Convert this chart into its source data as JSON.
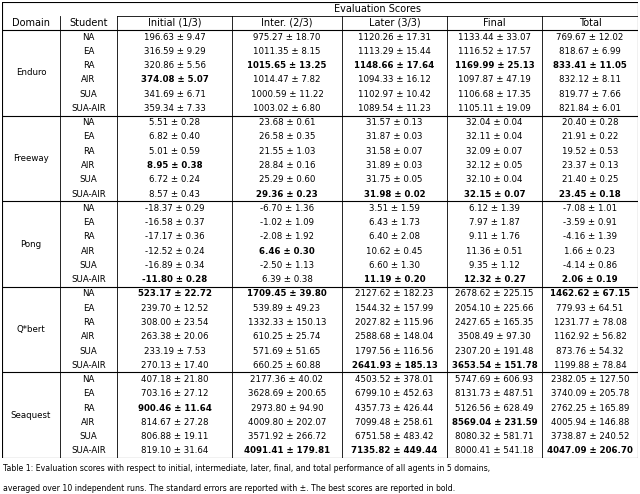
{
  "title": "Evaluation Scores",
  "col_headers": [
    "Domain",
    "Student",
    "Initial (1/3)",
    "Inter. (2/3)",
    "Later (3/3)",
    "Final",
    "Total"
  ],
  "domains": [
    "Enduro",
    "Freeway",
    "Pong",
    "Q*bert",
    "Seaquest"
  ],
  "students": [
    "NA",
    "EA",
    "RA",
    "AIR",
    "SUA",
    "SUA-AIR"
  ],
  "data": {
    "Enduro": {
      "NA": [
        "196.63 ± 9.47",
        "975.27 ± 18.70",
        "1120.26 ± 17.31",
        "1133.44 ± 33.07",
        "769.67 ± 12.02"
      ],
      "EA": [
        "316.59 ± 9.29",
        "1011.35 ± 8.15",
        "1113.29 ± 15.44",
        "1116.52 ± 17.57",
        "818.67 ± 6.99"
      ],
      "RA": [
        "320.86 ± 5.56",
        "1015.65 ± 13.25",
        "1148.66 ± 17.64",
        "1169.99 ± 25.13",
        "833.41 ± 11.05"
      ],
      "AIR": [
        "374.08 ± 5.07",
        "1014.47 ± 7.82",
        "1094.33 ± 16.12",
        "1097.87 ± 47.19",
        "832.12 ± 8.11"
      ],
      "SUA": [
        "341.69 ± 6.71",
        "1000.59 ± 11.22",
        "1102.97 ± 10.42",
        "1106.68 ± 17.35",
        "819.77 ± 7.66"
      ],
      "SUA-AIR": [
        "359.34 ± 7.33",
        "1003.02 ± 6.80",
        "1089.54 ± 11.23",
        "1105.11 ± 19.09",
        "821.84 ± 6.01"
      ]
    },
    "Freeway": {
      "NA": [
        "5.51 ± 0.28",
        "23.68 ± 0.61",
        "31.57 ± 0.13",
        "32.04 ± 0.04",
        "20.40 ± 0.28"
      ],
      "EA": [
        "6.82 ± 0.40",
        "26.58 ± 0.35",
        "31.87 ± 0.03",
        "32.11 ± 0.04",
        "21.91 ± 0.22"
      ],
      "RA": [
        "5.01 ± 0.59",
        "21.55 ± 1.03",
        "31.58 ± 0.07",
        "32.09 ± 0.07",
        "19.52 ± 0.53"
      ],
      "AIR": [
        "8.95 ± 0.38",
        "28.84 ± 0.16",
        "31.89 ± 0.03",
        "32.12 ± 0.05",
        "23.37 ± 0.13"
      ],
      "SUA": [
        "6.72 ± 0.24",
        "25.29 ± 0.60",
        "31.75 ± 0.05",
        "32.10 ± 0.04",
        "21.40 ± 0.25"
      ],
      "SUA-AIR": [
        "8.57 ± 0.43",
        "29.36 ± 0.23",
        "31.98 ± 0.02",
        "32.15 ± 0.07",
        "23.45 ± 0.18"
      ]
    },
    "Pong": {
      "NA": [
        "-18.37 ± 0.29",
        "-6.70 ± 1.36",
        "3.51 ± 1.59",
        "6.12 ± 1.39",
        "-7.08 ± 1.01"
      ],
      "EA": [
        "-16.58 ± 0.37",
        "-1.02 ± 1.09",
        "6.43 ± 1.73",
        "7.97 ± 1.87",
        "-3.59 ± 0.91"
      ],
      "RA": [
        "-17.17 ± 0.36",
        "-2.08 ± 1.92",
        "6.40 ± 2.08",
        "9.11 ± 1.76",
        "-4.16 ± 1.39"
      ],
      "AIR": [
        "-12.52 ± 0.24",
        "6.46 ± 0.30",
        "10.62 ± 0.45",
        "11.36 ± 0.51",
        "1.66 ± 0.23"
      ],
      "SUA": [
        "-16.89 ± 0.34",
        "-2.50 ± 1.13",
        "6.60 ± 1.30",
        "9.35 ± 1.12",
        "-4.14 ± 0.86"
      ],
      "SUA-AIR": [
        "-11.80 ± 0.28",
        "6.39 ± 0.38",
        "11.19 ± 0.20",
        "12.32 ± 0.27",
        "2.06 ± 0.19"
      ]
    },
    "Q*bert": {
      "NA": [
        "523.17 ± 22.72",
        "1709.45 ± 39.80",
        "2127.62 ± 182.23",
        "2678.62 ± 225.15",
        "1462.62 ± 67.15"
      ],
      "EA": [
        "239.70 ± 12.52",
        "539.89 ± 49.23",
        "1544.32 ± 157.99",
        "2054.10 ± 225.66",
        "779.93 ± 64.51"
      ],
      "RA": [
        "308.00 ± 23.54",
        "1332.33 ± 150.13",
        "2027.82 ± 115.96",
        "2427.65 ± 165.35",
        "1231.77 ± 78.08"
      ],
      "AIR": [
        "263.38 ± 20.06",
        "610.25 ± 25.74",
        "2588.68 ± 148.04",
        "3508.49 ± 97.30",
        "1162.92 ± 56.82"
      ],
      "SUA": [
        "233.19 ± 7.53",
        "571.69 ± 51.65",
        "1797.56 ± 116.56",
        "2307.20 ± 191.48",
        "873.76 ± 54.32"
      ],
      "SUA-AIR": [
        "270.13 ± 17.40",
        "660.25 ± 60.88",
        "2641.93 ± 185.13",
        "3653.54 ± 151.78",
        "1199.88 ± 78.84"
      ]
    },
    "Seaquest": {
      "NA": [
        "407.18 ± 21.80",
        "2177.36 ± 40.02",
        "4503.52 ± 378.01",
        "5747.69 ± 606.93",
        "2382.05 ± 127.50"
      ],
      "EA": [
        "703.16 ± 27.12",
        "3628.69 ± 200.65",
        "6799.10 ± 452.63",
        "8131.73 ± 487.51",
        "3740.09 ± 205.78"
      ],
      "RA": [
        "900.46 ± 11.64",
        "2973.80 ± 94.90",
        "4357.73 ± 426.44",
        "5126.56 ± 628.49",
        "2762.25 ± 165.89"
      ],
      "AIR": [
        "814.67 ± 27.28",
        "4009.80 ± 202.07",
        "7099.48 ± 258.61",
        "8569.04 ± 231.59",
        "4005.94 ± 146.88"
      ],
      "SUA": [
        "806.88 ± 19.11",
        "3571.92 ± 266.72",
        "6751.58 ± 483.42",
        "8080.32 ± 581.71",
        "3738.87 ± 240.52"
      ],
      "SUA-AIR": [
        "819.10 ± 31.64",
        "4091.41 ± 179.81",
        "7135.82 ± 449.44",
        "8000.41 ± 541.18",
        "4047.09 ± 206.70"
      ]
    }
  },
  "bold": {
    "Enduro": {
      "RA": [
        false,
        true,
        true,
        true,
        true
      ],
      "AIR": [
        true,
        false,
        false,
        false,
        false
      ]
    },
    "Freeway": {
      "AIR": [
        true,
        false,
        false,
        false,
        false
      ],
      "SUA-AIR": [
        false,
        true,
        true,
        true,
        true
      ]
    },
    "Pong": {
      "AIR": [
        false,
        true,
        false,
        false,
        false
      ],
      "SUA-AIR": [
        true,
        false,
        true,
        true,
        true
      ]
    },
    "Q*bert": {
      "NA": [
        true,
        true,
        false,
        false,
        true
      ],
      "SUA-AIR": [
        false,
        false,
        true,
        true,
        false
      ]
    },
    "Seaquest": {
      "RA": [
        true,
        false,
        false,
        false,
        false
      ],
      "AIR": [
        false,
        false,
        false,
        true,
        false
      ],
      "SUA-AIR": [
        false,
        true,
        true,
        false,
        true
      ]
    }
  },
  "caption_line1": "Table 1: Evaluation scores with respect to initial, intermediate, later, final, and total performance of all agents in 5 domains,",
  "caption_line2": "averaged over 10 independent runs. The standard errors are reported with ±. The best scores are reported in bold.",
  "fig_width": 6.4,
  "fig_height": 4.94,
  "dpi": 100
}
